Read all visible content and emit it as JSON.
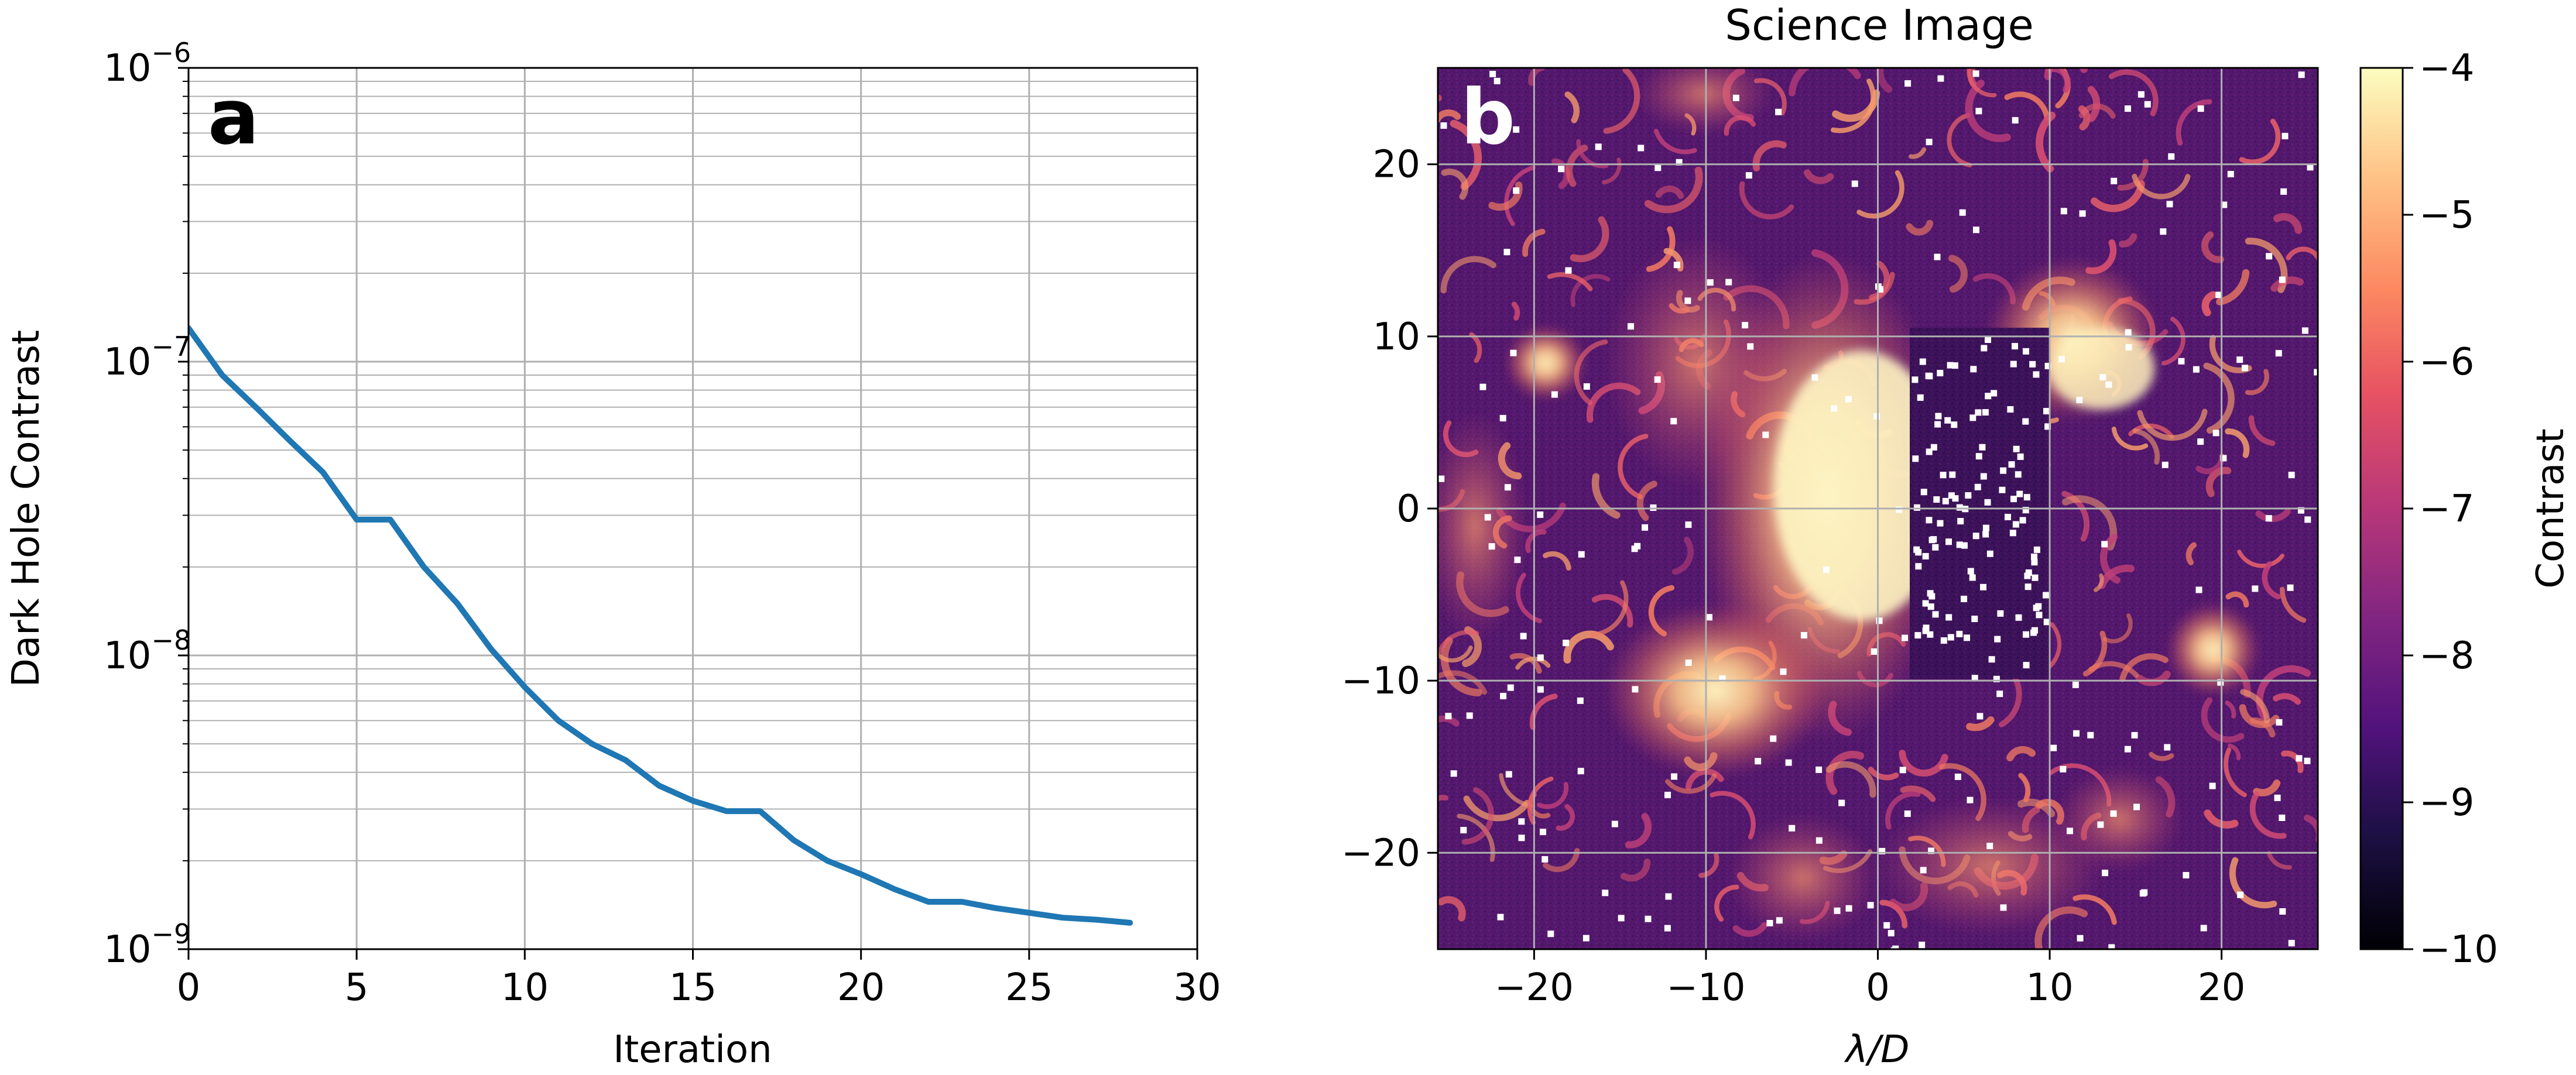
{
  "panel_a": {
    "label": "a",
    "xlabel": "Iteration",
    "ylabel": "Dark Hole Contrast",
    "x_ticks": [
      "0",
      "5",
      "10",
      "15",
      "20",
      "25",
      "30"
    ],
    "y_tick_bases": [
      "10",
      "10",
      "10",
      "10"
    ],
    "y_tick_exps": [
      "−9",
      "−8",
      "−7",
      "−6"
    ]
  },
  "panel_b": {
    "label": "b",
    "title": "Science Image",
    "xlabel": "λ/D",
    "x_ticks": [
      "−20",
      "−10",
      "0",
      "10",
      "20"
    ],
    "y_ticks": [
      "20",
      "10",
      "0",
      "−10",
      "−20"
    ],
    "colorbar_label": "Contrast",
    "colorbar_ticks": [
      "−4",
      "−5",
      "−6",
      "−7",
      "−8",
      "−9",
      "−10"
    ]
  },
  "chart_data": [
    {
      "type": "line",
      "title": "",
      "xlabel": "Iteration",
      "ylabel": "Dark Hole Contrast",
      "yscale": "log",
      "xlim": [
        0,
        30
      ],
      "ylim": [
        1e-09,
        1e-06
      ],
      "grid": true,
      "series": [
        {
          "name": "Dark Hole Contrast",
          "color": "#1f77b4",
          "x": [
            0,
            1,
            2,
            3,
            4,
            5,
            6,
            7,
            8,
            9,
            10,
            11,
            12,
            13,
            14,
            15,
            16,
            17,
            18,
            19,
            20,
            21,
            22,
            23,
            24,
            25,
            26,
            27,
            28
          ],
          "values": [
            1.3e-07,
            9e-08,
            7e-08,
            5.4e-08,
            4.2e-08,
            2.9e-08,
            2.9e-08,
            2e-08,
            1.5e-08,
            1.05e-08,
            7.8e-09,
            6e-09,
            5e-09,
            4.4e-09,
            3.6e-09,
            3.2e-09,
            2.95e-09,
            2.95e-09,
            2.35e-09,
            2e-09,
            1.8e-09,
            1.6e-09,
            1.45e-09,
            1.45e-09,
            1.38e-09,
            1.33e-09,
            1.28e-09,
            1.26e-09,
            1.23e-09
          ]
        }
      ]
    },
    {
      "type": "heatmap",
      "title": "Science Image",
      "xlabel": "λ/D",
      "ylabel": "",
      "xlim": [
        -25.6,
        25.6
      ],
      "ylim": [
        -25.6,
        25.6
      ],
      "colormap": "magma",
      "colorbar": {
        "label": "Contrast",
        "range": [
          -10,
          -4
        ],
        "scale": "log10"
      },
      "grid": true,
      "dark_hole": {
        "x_range": [
          2,
          10
        ],
        "y_range": [
          -10,
          10
        ]
      }
    }
  ]
}
